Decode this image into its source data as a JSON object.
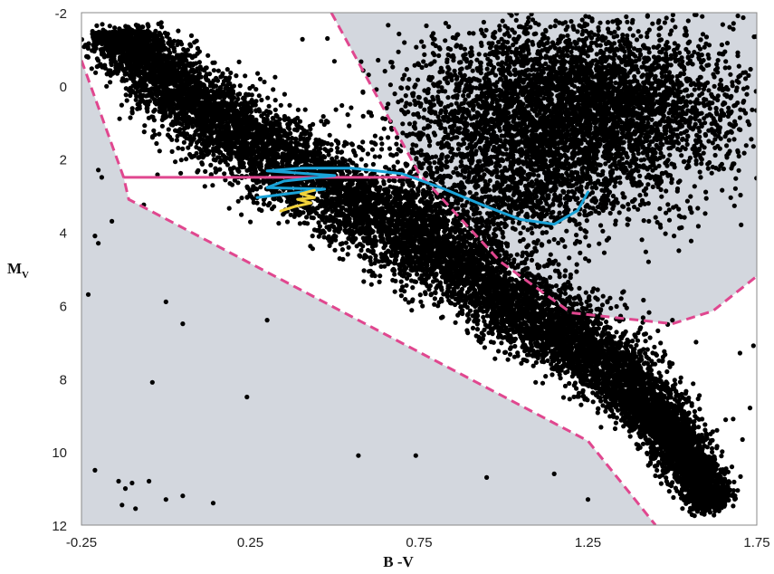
{
  "chart_data": {
    "type": "scatter",
    "title": "",
    "xlabel": "B -V",
    "ylabel": {
      "main": "M",
      "sub": "V"
    },
    "xlim": [
      -0.25,
      1.75
    ],
    "ylim": [
      12,
      -2
    ],
    "y_inverted": true,
    "xticks": [
      -0.25,
      0.25,
      0.75,
      1.25,
      1.75
    ],
    "xtick_labels": [
      "-0.25",
      "0.25",
      "0.75",
      "1.25",
      "1.75"
    ],
    "yticks": [
      -2,
      0,
      2,
      4,
      6,
      8,
      10,
      12
    ],
    "ytick_labels": [
      "-2",
      "0",
      "2",
      "4",
      "6",
      "8",
      "10",
      "12"
    ],
    "grid": false,
    "colors": {
      "background_region": "#d3d7de",
      "selection_gap": "#ffffff",
      "points": "#000000",
      "boundary": "#e0478f",
      "track_blue": "#1aa3d8",
      "track_yellow": "#f2d23a"
    },
    "regions": {
      "lower_boundary": [
        [
          -0.25,
          -0.7
        ],
        [
          -0.125,
          2.5
        ],
        [
          -0.11,
          3.1
        ],
        [
          1.25,
          9.7
        ],
        [
          1.45,
          12
        ]
      ],
      "upper_boundary": [
        [
          0.49,
          -2
        ],
        [
          0.75,
          2.4
        ],
        [
          0.99,
          4.8
        ],
        [
          1.2,
          6.2
        ],
        [
          1.5,
          6.5
        ],
        [
          1.62,
          6.15
        ],
        [
          1.75,
          5.2
        ]
      ],
      "reference_line": [
        [
          -0.125,
          2.5
        ],
        [
          0.75,
          2.5
        ]
      ]
    },
    "series": [
      {
        "type": "density",
        "color": "#000000",
        "clouds": [
          {
            "points": [
              [
                -0.15,
                -1.5
              ],
              [
                0.1,
                0.5
              ],
              [
                0.4,
                2.4
              ],
              [
                0.75,
                4.2
              ],
              [
                1.05,
                6.0
              ],
              [
                1.3,
                7.6
              ],
              [
                1.5,
                9.5
              ],
              [
                1.62,
                11.5
              ]
            ],
            "halfwidth": [
              0.08,
              0.13,
              0.16,
              0.16,
              0.15,
              0.11,
              0.07,
              0.05
            ],
            "count": 11000
          },
          {
            "center": [
              1.22,
              0.6
            ],
            "spread": [
              0.24,
              1.1
            ],
            "count": 4500
          },
          {
            "center": [
              1.02,
              2.8
            ],
            "spread": [
              0.2,
              0.8
            ],
            "count": 1200
          }
        ],
        "sparse_points": [
          [
            -0.21,
            10.5
          ],
          [
            -0.14,
            10.8
          ],
          [
            -0.12,
            11.0
          ],
          [
            -0.1,
            10.85
          ],
          [
            -0.05,
            10.8
          ],
          [
            0.0,
            11.3
          ],
          [
            0.05,
            11.2
          ],
          [
            0.14,
            11.4
          ],
          [
            -0.13,
            11.45
          ],
          [
            -0.09,
            11.55
          ],
          [
            -0.23,
            5.7
          ],
          [
            -0.2,
            4.3
          ],
          [
            -0.21,
            4.1
          ],
          [
            -0.2,
            2.3
          ],
          [
            -0.19,
            2.5
          ],
          [
            -0.16,
            3.7
          ],
          [
            -0.04,
            8.1
          ],
          [
            0.05,
            6.5
          ],
          [
            0.0,
            5.9
          ],
          [
            0.06,
            2.0
          ],
          [
            0.3,
            6.4
          ],
          [
            0.24,
            8.5
          ],
          [
            0.57,
            10.1
          ],
          [
            0.74,
            10.1
          ],
          [
            0.95,
            10.7
          ],
          [
            1.15,
            10.6
          ],
          [
            1.25,
            11.3
          ],
          [
            1.5,
            6.4
          ],
          [
            1.57,
            7.0
          ],
          [
            1.7,
            7.3
          ],
          [
            1.73,
            8.8
          ],
          [
            1.68,
            9.1
          ],
          [
            1.6,
            9.5
          ],
          [
            1.74,
            7.1
          ]
        ]
      },
      {
        "name": "",
        "type": "track",
        "color": "#1aa3d8",
        "points": [
          [
            1.25,
            2.9
          ],
          [
            1.22,
            3.4
          ],
          [
            1.15,
            3.78
          ],
          [
            1.05,
            3.65
          ],
          [
            0.95,
            3.3
          ],
          [
            0.82,
            2.8
          ],
          [
            0.7,
            2.4
          ],
          [
            0.55,
            2.25
          ],
          [
            0.4,
            2.25
          ],
          [
            0.3,
            2.32
          ],
          [
            0.5,
            2.45
          ],
          [
            0.35,
            2.6
          ],
          [
            0.3,
            2.78
          ],
          [
            0.47,
            2.82
          ],
          [
            0.27,
            3.05
          ]
        ]
      },
      {
        "name": "",
        "type": "track",
        "color": "#f2d23a",
        "points": [
          [
            0.44,
            2.85
          ],
          [
            0.4,
            2.95
          ],
          [
            0.44,
            3.05
          ],
          [
            0.39,
            3.1
          ],
          [
            0.43,
            3.2
          ],
          [
            0.38,
            3.3
          ],
          [
            0.34,
            3.42
          ]
        ]
      }
    ]
  }
}
